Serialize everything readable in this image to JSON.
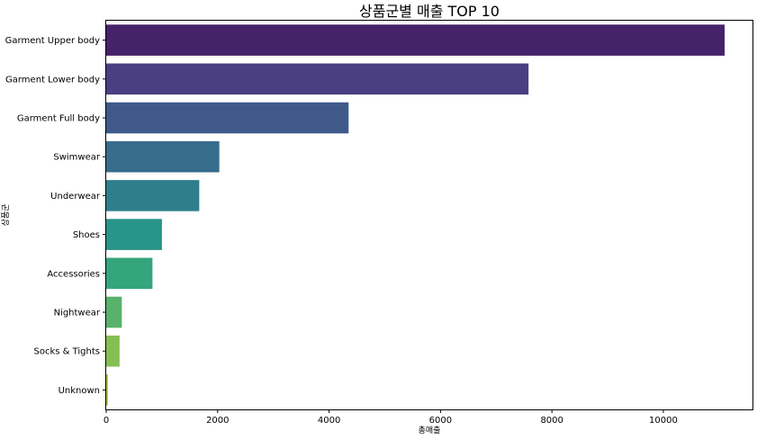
{
  "chart_data": {
    "type": "bar",
    "orientation": "horizontal",
    "title": "상품군별 매출 TOP 10",
    "xlabel": "총매출",
    "ylabel": "상품군",
    "xlim": [
      0,
      11600
    ],
    "xticks": [
      "0",
      "2000",
      "4000",
      "6000",
      "8000",
      "10000"
    ],
    "xtick_values": [
      0,
      2000,
      4000,
      6000,
      8000,
      10000
    ],
    "grid": false,
    "legend": "none",
    "categories": [
      "Garment Upper body",
      "Garment Lower body",
      "Garment Full body",
      "Swimwear",
      "Underwear",
      "Shoes",
      "Accessories",
      "Nightwear",
      "Socks & Tights",
      "Unknown"
    ],
    "values": [
      11100,
      7580,
      4350,
      2030,
      1670,
      1000,
      830,
      280,
      240,
      30
    ],
    "colors": [
      "#46226b",
      "#4a3f81",
      "#3f5a8a",
      "#376d8d",
      "#2e7e8c",
      "#299489",
      "#35a57d",
      "#58b26b",
      "#85bf53",
      "#a3c23c"
    ]
  }
}
